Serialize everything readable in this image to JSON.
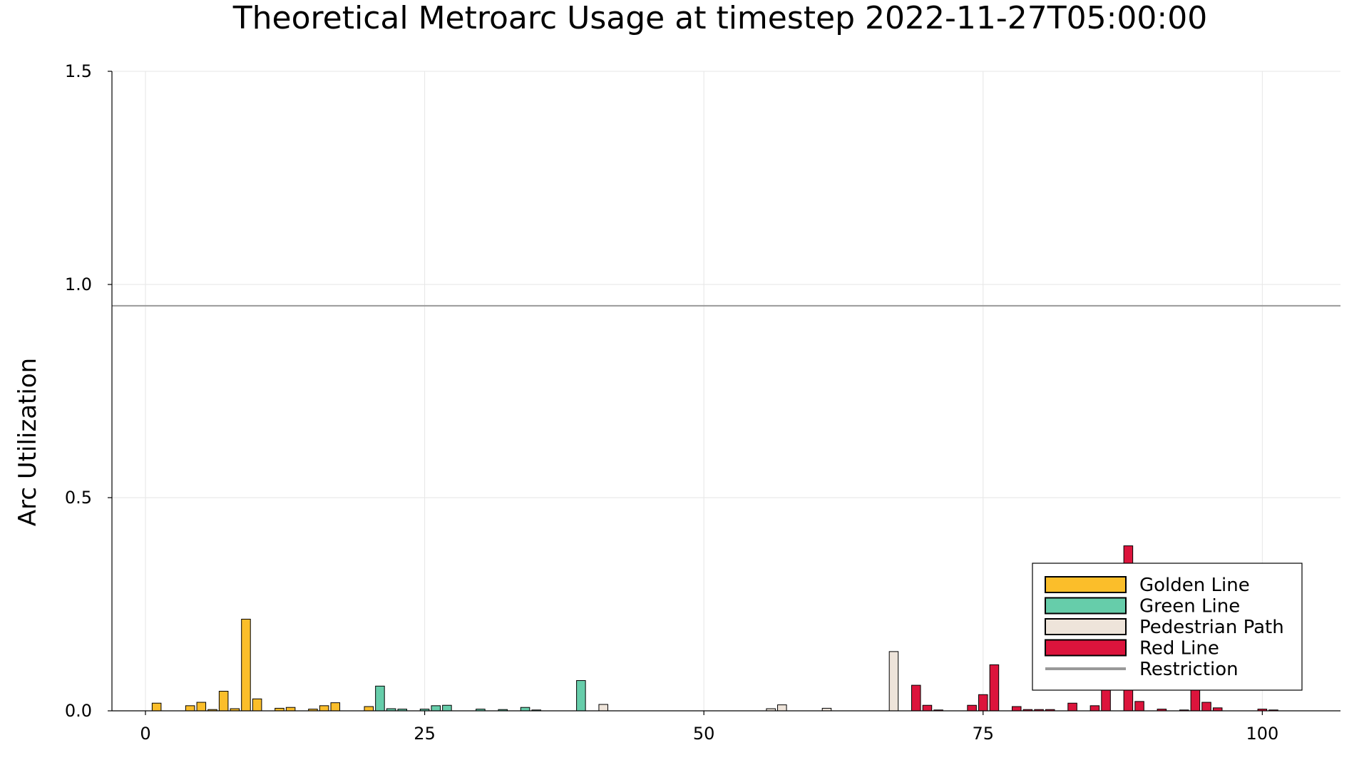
{
  "chart_data": {
    "type": "bar",
    "title": "Theoretical Metroarc Usage at timestep 2022-11-27T05:00:00",
    "xlabel": "",
    "ylabel": "Arc Utilization",
    "xlim": [
      -3,
      107
    ],
    "ylim": [
      0,
      1.5
    ],
    "xticks": [
      0,
      25,
      50,
      75,
      100
    ],
    "yticks": [
      0.0,
      0.5,
      1.0,
      1.5
    ],
    "xtick_labels": [
      "0",
      "25",
      "50",
      "75",
      "100"
    ],
    "ytick_labels": [
      "0.0",
      "0.5",
      "1.0",
      "1.5"
    ],
    "grid": true,
    "legend_position": "bottom-right",
    "restriction": {
      "name": "Restriction",
      "y": 0.95,
      "color": "#999999"
    },
    "series": [
      {
        "name": "Golden Line",
        "color": "#FBBE2A",
        "x": [
          1,
          4,
          5,
          6,
          7,
          8,
          9,
          10,
          12,
          13,
          15,
          16,
          17,
          20
        ],
        "values": [
          0.018,
          0.012,
          0.02,
          0.003,
          0.046,
          0.005,
          0.215,
          0.028,
          0.006,
          0.008,
          0.004,
          0.012,
          0.019,
          0.01
        ]
      },
      {
        "name": "Green Line",
        "color": "#66CDAA",
        "x": [
          21,
          22,
          23,
          25,
          26,
          27,
          30,
          32,
          34,
          35,
          39
        ],
        "values": [
          0.058,
          0.005,
          0.004,
          0.004,
          0.012,
          0.013,
          0.004,
          0.003,
          0.008,
          0.002,
          0.071
        ]
      },
      {
        "name": "Pedestrian Path",
        "color": "#EEE4DA",
        "x": [
          41,
          56,
          57,
          61,
          67
        ],
        "values": [
          0.015,
          0.005,
          0.014,
          0.006,
          0.139
        ]
      },
      {
        "name": "Red Line",
        "color": "#DC143C",
        "x": [
          69,
          70,
          71,
          74,
          75,
          76,
          78,
          79,
          80,
          81,
          83,
          85,
          86,
          88,
          89,
          91,
          93,
          94,
          95,
          96,
          100,
          101
        ],
        "values": [
          0.06,
          0.013,
          0.002,
          0.013,
          0.038,
          0.108,
          0.01,
          0.003,
          0.003,
          0.003,
          0.018,
          0.012,
          0.11,
          0.387,
          0.022,
          0.004,
          0.002,
          0.06,
          0.02,
          0.007,
          0.004,
          0.002
        ]
      }
    ]
  }
}
